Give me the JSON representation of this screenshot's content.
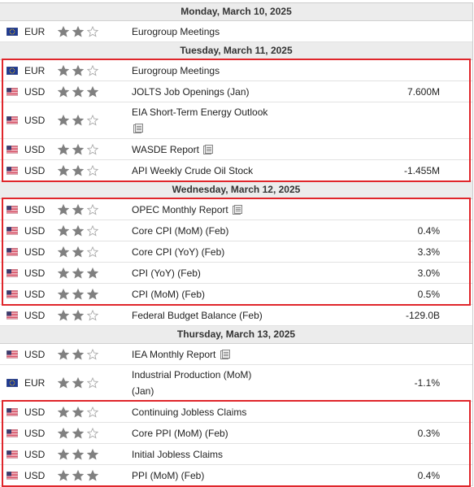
{
  "days": [
    {
      "date": "Monday, March 10, 2025",
      "events": [
        {
          "currency": "EUR",
          "importance": 2,
          "event": "Eurogroup Meetings"
        }
      ]
    },
    {
      "date": "Tuesday, March 11, 2025",
      "events": [
        {
          "currency": "EUR",
          "importance": 2,
          "event": "Eurogroup Meetings",
          "highlighted": true
        },
        {
          "currency": "USD",
          "importance": 3,
          "event": "JOLTS Job Openings (Jan)",
          "actual": "7.600M",
          "highlighted": true
        },
        {
          "currency": "USD",
          "importance": 2,
          "event": "EIA Short-Term Energy Outlook",
          "report_icon": true,
          "highlighted": true
        },
        {
          "currency": "USD",
          "importance": 2,
          "event": "WASDE Report",
          "report_icon": true,
          "highlighted": true
        },
        {
          "currency": "USD",
          "importance": 2,
          "event": "API Weekly Crude Oil Stock",
          "actual": "-1.455M",
          "highlighted": true
        }
      ]
    },
    {
      "date": "Wednesday, March 12, 2025",
      "events": [
        {
          "currency": "USD",
          "importance": 2,
          "event": "OPEC Monthly Report",
          "report_icon": true,
          "highlighted": true
        },
        {
          "currency": "USD",
          "importance": 2,
          "event": "Core CPI (MoM) (Feb)",
          "actual": "0.4%",
          "highlighted": true
        },
        {
          "currency": "USD",
          "importance": 2,
          "event": "Core CPI (YoY) (Feb)",
          "actual": "3.3%",
          "highlighted": true
        },
        {
          "currency": "USD",
          "importance": 3,
          "event": "CPI (YoY) (Feb)",
          "actual": "3.0%",
          "highlighted": true
        },
        {
          "currency": "USD",
          "importance": 3,
          "event": "CPI (MoM) (Feb)",
          "actual": "0.5%",
          "highlighted": true
        },
        {
          "currency": "USD",
          "importance": 2,
          "event": "Federal Budget Balance (Feb)",
          "actual": "-129.0B"
        }
      ]
    },
    {
      "date": "Thursday, March 13, 2025",
      "events": [
        {
          "currency": "USD",
          "importance": 2,
          "event": "IEA Monthly Report",
          "report_icon": true
        },
        {
          "currency": "EUR",
          "importance": 2,
          "event": "Industrial Production (MoM) (Jan)",
          "actual": "-1.1%"
        },
        {
          "currency": "USD",
          "importance": 2,
          "event": "Continuing Jobless Claims",
          "highlighted": true
        },
        {
          "currency": "USD",
          "importance": 2,
          "event": "Core PPI (MoM) (Feb)",
          "actual": "0.3%",
          "highlighted": true
        },
        {
          "currency": "USD",
          "importance": 3,
          "event": "Initial Jobless Claims",
          "highlighted": true
        },
        {
          "currency": "USD",
          "importance": 3,
          "event": "PPI (MoM) (Feb)",
          "actual": "0.4%",
          "highlighted": true
        }
      ]
    }
  ]
}
